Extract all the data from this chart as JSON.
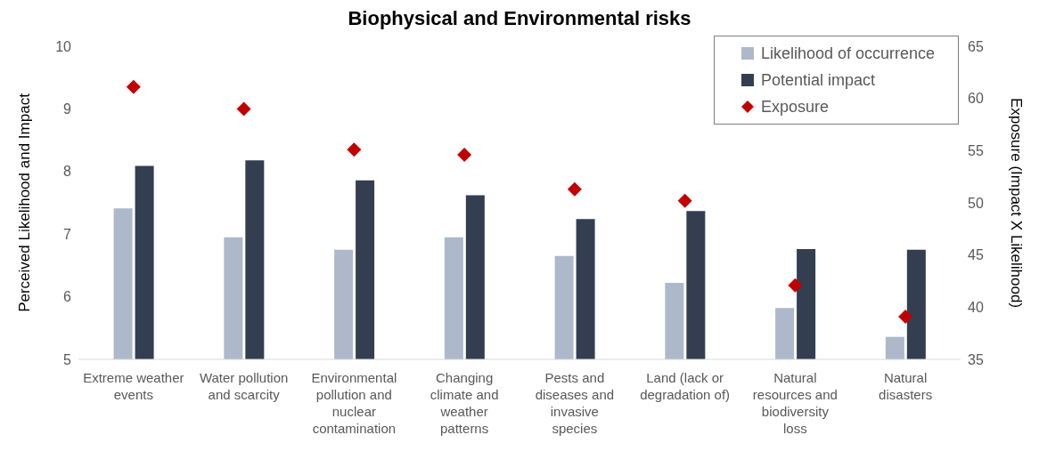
{
  "chart_data": {
    "type": "bar",
    "title": "Biophysical and Environmental risks",
    "ylabel": "Perceived Likelihood and Impact",
    "y2label": "Exposure (Impact X Likelihood)",
    "categories": [
      "Extreme weather events",
      "Water pollution and scarcity",
      "Environmental pollution and nuclear contamination",
      "Changing climate and weather patterns",
      "Pests and diseases and invasive species",
      "Land (lack or degradation of)",
      "Natural resources and biodiversity loss",
      "Natural disasters"
    ],
    "series": [
      {
        "name": "Likelihood of occurrence",
        "color": "#adb9ca",
        "values": [
          7.41,
          6.95,
          6.75,
          6.95,
          6.65,
          6.22,
          5.82,
          5.36
        ]
      },
      {
        "name": "Potential impact",
        "color": "#333f50",
        "values": [
          8.09,
          8.18,
          7.86,
          7.62,
          7.24,
          7.37,
          6.76,
          6.75
        ]
      },
      {
        "name": "Exposure",
        "type": "scatter",
        "axis": "y2",
        "marker": "diamond",
        "color": "#c00000",
        "values": [
          61.1,
          59.0,
          55.1,
          54.6,
          51.3,
          50.2,
          42.1,
          39.1
        ]
      }
    ],
    "ylim": [
      5,
      10
    ],
    "yticks": [
      5,
      6,
      7,
      8,
      9,
      10
    ],
    "y2lim": [
      35,
      65
    ],
    "y2ticks": [
      35,
      40,
      45,
      50,
      55,
      60,
      65
    ],
    "legend": "top right",
    "grid": false
  }
}
